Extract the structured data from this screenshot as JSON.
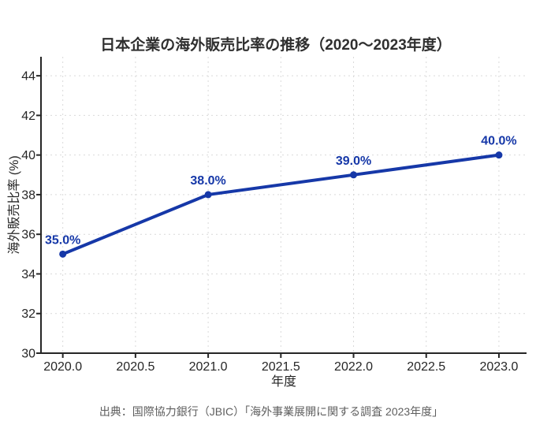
{
  "chart_data": {
    "type": "line",
    "title": "日本企業の海外販売比率の推移（2020〜2023年度）",
    "xlabel": "年度",
    "ylabel": "海外販売比率 (%)",
    "source": "出典：国際協力銀行（JBIC）「海外事業展開に関する調査 2023年度」",
    "x": [
      2020,
      2021,
      2022,
      2023
    ],
    "values": [
      35.0,
      38.0,
      39.0,
      40.0
    ],
    "point_labels": [
      "35.0%",
      "38.0%",
      "39.0%",
      "40.0%"
    ],
    "x_ticks": [
      2020.0,
      2020.5,
      2021.0,
      2021.5,
      2022.0,
      2022.5,
      2023.0
    ],
    "x_tick_labels": [
      "2020.0",
      "2020.5",
      "2021.0",
      "2021.5",
      "2022.0",
      "2022.5",
      "2023.0"
    ],
    "y_ticks": [
      30,
      32,
      34,
      36,
      38,
      40,
      42,
      44
    ],
    "y_tick_labels": [
      "30",
      "32",
      "34",
      "36",
      "38",
      "40",
      "42",
      "44"
    ],
    "xlim": [
      2019.85,
      2023.19
    ],
    "ylim": [
      30,
      44.96
    ],
    "grid": true,
    "legend": "none",
    "line_color": "#1638a8",
    "label_color": "#1638a8",
    "grid_color": "#d9d9d9",
    "axis_color": "#262626",
    "tick_text_color": "#262626",
    "title_color": "#2f2f2f",
    "source_color": "#5e5e5e"
  }
}
